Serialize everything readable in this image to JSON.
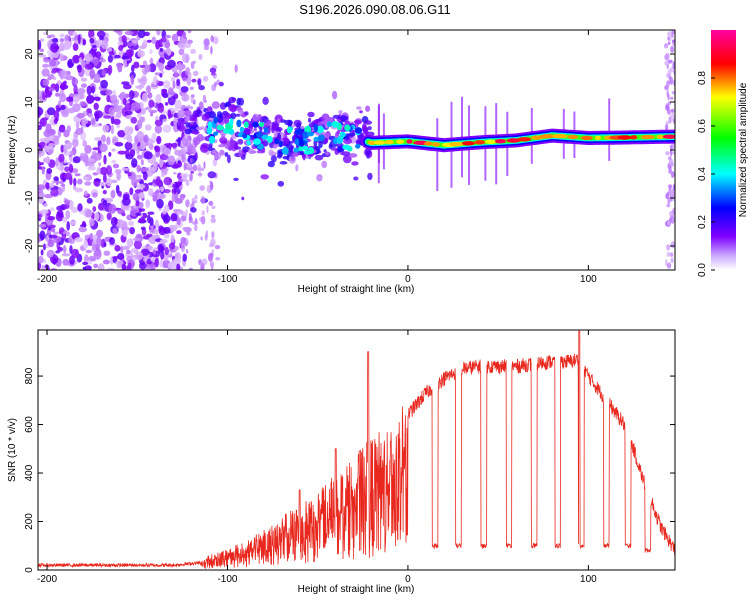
{
  "title": "S196.2026.090.08.06.G11",
  "chart_data": [
    {
      "type": "heatmap",
      "name": "spectrogram",
      "xlabel": "Height of straight line (km)",
      "ylabel": "Frequency (Hz)",
      "xlim": [
        -205,
        148
      ],
      "ylim": [
        -25,
        25
      ],
      "xticks": [
        -200,
        -100,
        0,
        100
      ],
      "yticks": [
        -20,
        -10,
        0,
        10,
        20
      ],
      "colorbar": {
        "label": "Normalized spectral amplitude",
        "range": [
          0,
          1
        ],
        "ticks": [
          0.0,
          0.2,
          0.4,
          0.6,
          0.8
        ],
        "colormap": "rainbow",
        "colors": [
          "#ffffff",
          "#8000ff",
          "#0000ff",
          "#00ffff",
          "#00ff00",
          "#ffff00",
          "#ff0000",
          "#ff00a0"
        ]
      },
      "signal_track": [
        {
          "x": -120,
          "f": 2.0
        },
        {
          "x": -100,
          "f": 5.0
        },
        {
          "x": -80,
          "f": 3.0
        },
        {
          "x": -60,
          "f": 1.5
        },
        {
          "x": -40,
          "f": 3.5
        },
        {
          "x": -20,
          "f": 1.5
        },
        {
          "x": 0,
          "f": 1.8
        },
        {
          "x": 20,
          "f": 1.0
        },
        {
          "x": 40,
          "f": 1.6
        },
        {
          "x": 60,
          "f": 2.0
        },
        {
          "x": 80,
          "f": 3.0
        },
        {
          "x": 100,
          "f": 2.5
        },
        {
          "x": 120,
          "f": 2.6
        },
        {
          "x": 148,
          "f": 2.8
        }
      ]
    },
    {
      "type": "line",
      "name": "snr",
      "xlabel": "Height of straight line (km)",
      "ylabel": "SNR (10 * v/v)",
      "xlim": [
        -205,
        148
      ],
      "ylim": [
        0,
        990
      ],
      "xticks": [
        -200,
        -100,
        0,
        100
      ],
      "yticks": [
        0,
        200,
        400,
        600,
        800
      ],
      "color": "#e8281e",
      "envelope": {
        "x": [
          -205,
          -130,
          -115,
          -110,
          -100,
          -90,
          -80,
          -70,
          -60,
          -50,
          -40,
          -30,
          -20,
          -10,
          0,
          10,
          20,
          30,
          40,
          50,
          60,
          70,
          80,
          90,
          95,
          100,
          110,
          120,
          125,
          130,
          140,
          148
        ],
        "y": [
          20,
          20,
          30,
          60,
          80,
          110,
          150,
          200,
          260,
          300,
          360,
          430,
          500,
          560,
          640,
          730,
          790,
          830,
          840,
          840,
          840,
          850,
          860,
          860,
          870,
          800,
          700,
          600,
          500,
          380,
          180,
          80
        ]
      },
      "dropouts": [
        {
          "x": 15,
          "y": 90
        },
        {
          "x": 28,
          "y": 90
        },
        {
          "x": 42,
          "y": 90
        },
        {
          "x": 56,
          "y": 90
        },
        {
          "x": 70,
          "y": 90
        },
        {
          "x": 83,
          "y": 90
        },
        {
          "x": 96,
          "y": 90
        },
        {
          "x": 110,
          "y": 90
        },
        {
          "x": 122,
          "y": 90
        },
        {
          "x": 133,
          "y": 70
        }
      ],
      "spikes": [
        {
          "x": -22,
          "y": 900
        },
        {
          "x": 95,
          "y": 985
        },
        {
          "x": -60,
          "y": 330
        },
        {
          "x": -40,
          "y": 500
        }
      ]
    }
  ]
}
